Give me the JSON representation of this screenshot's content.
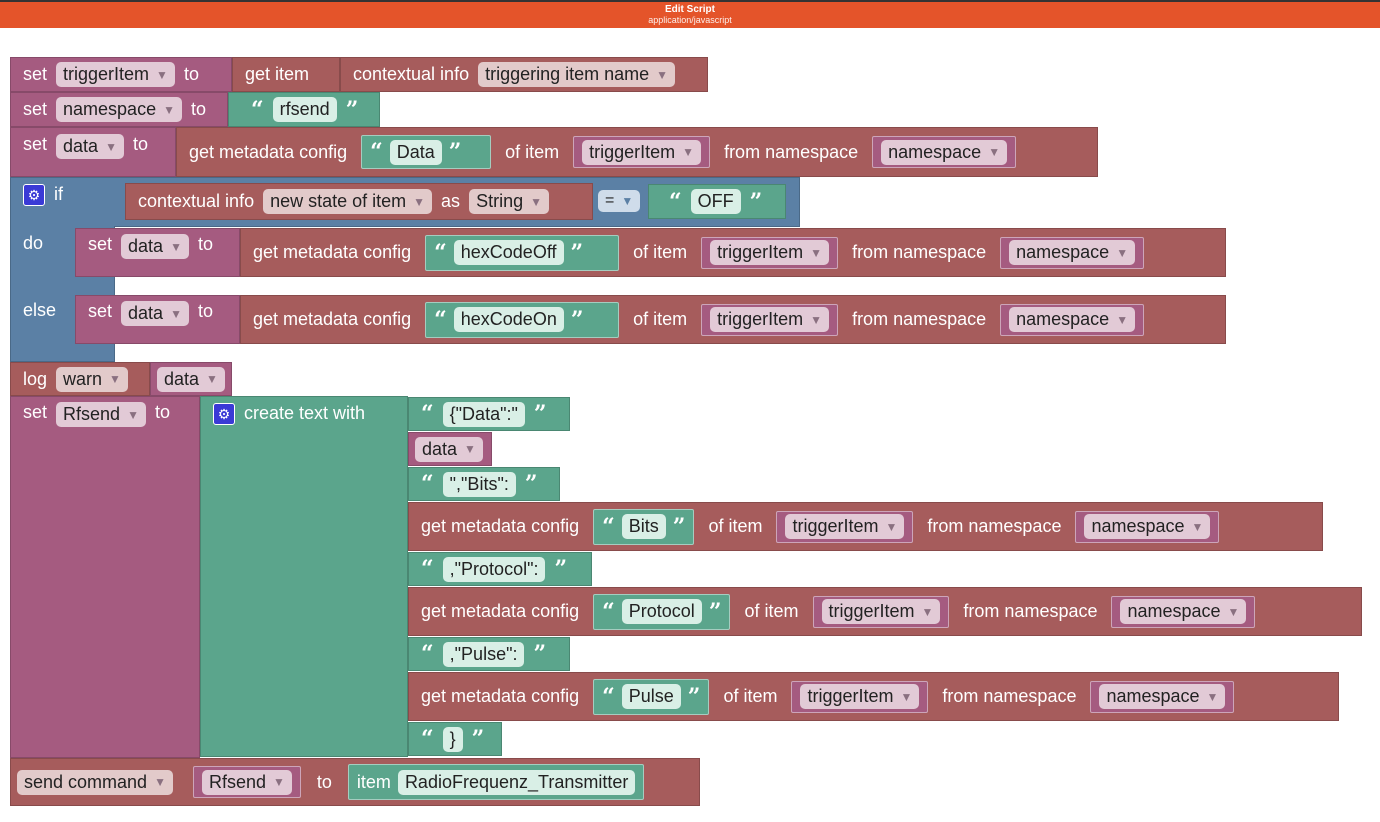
{
  "header": {
    "title": "Edit Script",
    "subtitle": "application/javascript"
  },
  "labels": {
    "set": "set",
    "to": "to",
    "get_item": "get item",
    "contextual_info": "contextual info",
    "get_metadata": "get metadata config",
    "of_item": "of item",
    "from_namespace": "from namespace",
    "if": "if",
    "do": "do",
    "else": "else",
    "as": "as",
    "log": "log",
    "create_text": "create text with",
    "send_command": "send command",
    "item": "item",
    "open_quote": "“",
    "close_quote": "”"
  },
  "vars": {
    "triggerItem": "triggerItem",
    "namespace": "namespace",
    "data": "data",
    "Rfsend": "Rfsend"
  },
  "row1": {
    "ctx_option": "triggering item name"
  },
  "row2": {
    "text": "rfsend"
  },
  "row3": {
    "key": "Data"
  },
  "if_block": {
    "ctx_option": "new state of item",
    "as_type": "String",
    "operator": "=",
    "compare": "OFF",
    "do_key": "hexCodeOff",
    "else_key": "hexCodeOn"
  },
  "log": {
    "level": "warn"
  },
  "create_text": {
    "parts": [
      "{\"Data\":\"",
      "\",\"Bits\":",
      ",\"Protocol\":",
      ",\"Pulse\":",
      "}"
    ],
    "keys": [
      "Bits",
      "Protocol",
      "Pulse"
    ]
  },
  "send": {
    "item": "RadioFrequenz_Transmitter"
  },
  "colors": {
    "header": "#E4542A",
    "variables": "#A55B80",
    "openhab": "#A65C5C",
    "text": "#5BA58C",
    "logic": "#5B80A5"
  }
}
